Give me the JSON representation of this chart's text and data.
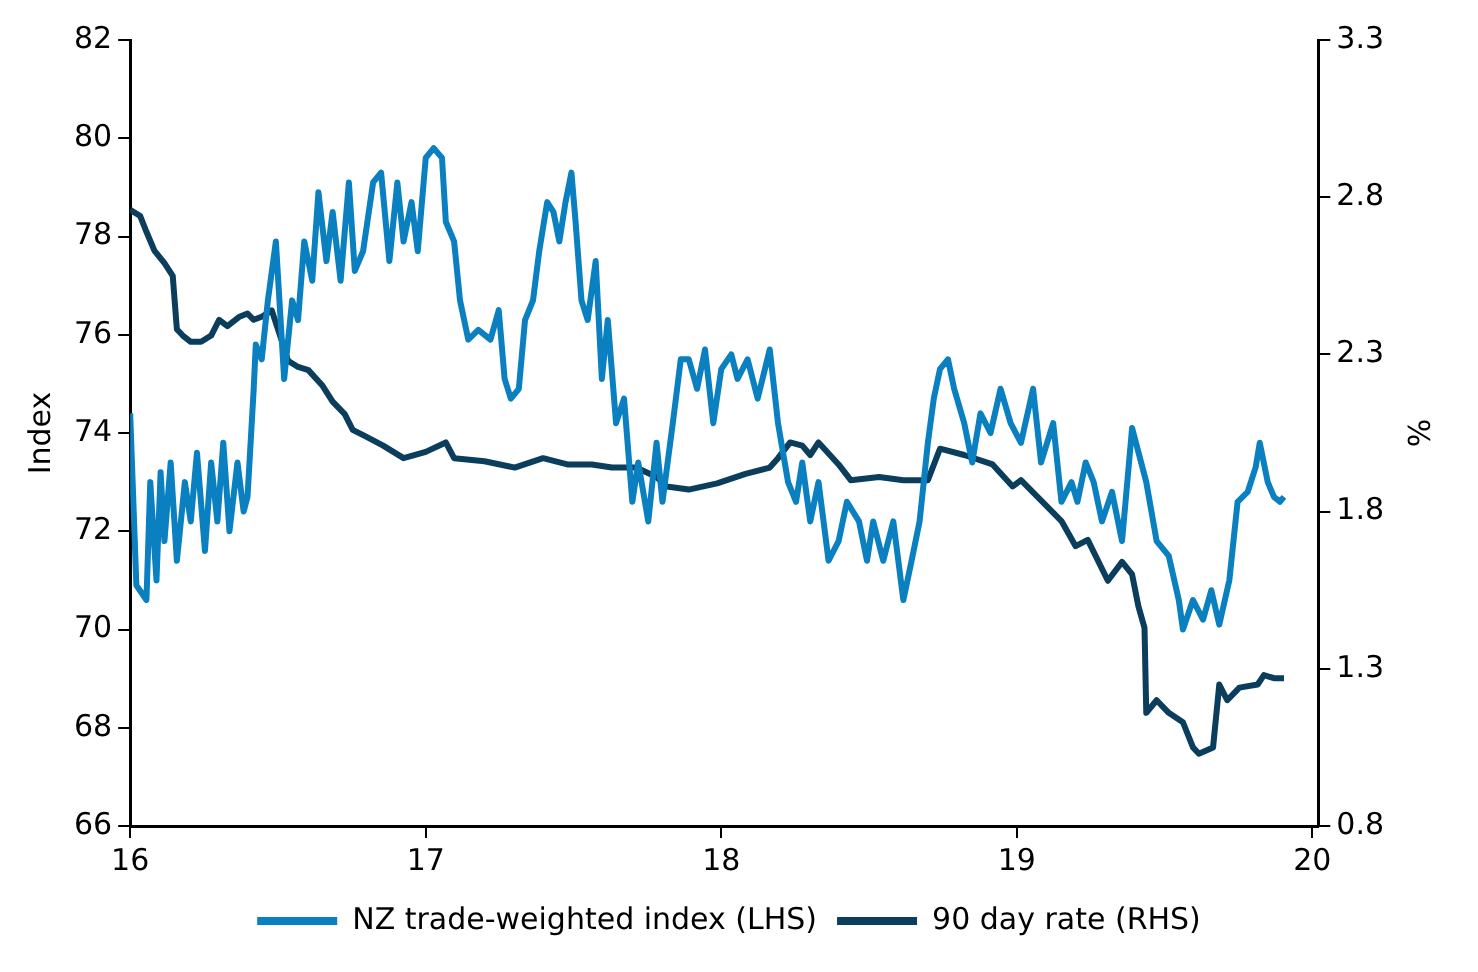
{
  "chart_data": {
    "type": "line",
    "ylabel": "Index",
    "y2label": "%",
    "xlim": [
      16,
      20.02
    ],
    "xticks": [
      16,
      17,
      18,
      19,
      20
    ],
    "ylim": [
      66,
      82
    ],
    "yticks": [
      66,
      68,
      70,
      72,
      74,
      76,
      78,
      80,
      82
    ],
    "y2lim": [
      0.8,
      3.3
    ],
    "y2ticks": [
      0.8,
      1.3,
      1.8,
      2.3,
      2.8,
      3.3
    ],
    "grid": false,
    "legend": "bottom",
    "marker": "none",
    "line_style": "solid",
    "series": [
      {
        "name": "NZ trade-weighted index (LHS)",
        "color": "#0a80c0",
        "x": [
          16.0,
          16.021,
          16.055,
          16.068,
          16.089,
          16.103,
          16.116,
          16.137,
          16.158,
          16.185,
          16.205,
          16.226,
          16.253,
          16.274,
          16.295,
          16.315,
          16.336,
          16.363,
          16.384,
          16.397,
          16.418,
          16.425,
          16.445,
          16.466,
          16.493,
          16.521,
          16.548,
          16.568,
          16.589,
          16.616,
          16.637,
          16.664,
          16.685,
          16.712,
          16.74,
          16.76,
          16.788,
          16.822,
          16.849,
          16.877,
          16.904,
          16.925,
          16.952,
          16.973,
          17.0,
          17.027,
          17.055,
          17.068,
          17.096,
          17.116,
          17.144,
          17.178,
          17.219,
          17.247,
          17.267,
          17.288,
          17.315,
          17.336,
          17.363,
          17.384,
          17.411,
          17.432,
          17.452,
          17.473,
          17.493,
          17.507,
          17.527,
          17.548,
          17.575,
          17.596,
          17.616,
          17.644,
          17.671,
          17.699,
          17.719,
          17.753,
          17.781,
          17.801,
          17.836,
          17.863,
          17.89,
          17.918,
          17.945,
          17.973,
          18.0,
          18.034,
          18.055,
          18.089,
          18.123,
          18.164,
          18.192,
          18.226,
          18.253,
          18.274,
          18.301,
          18.329,
          18.363,
          18.397,
          18.425,
          18.466,
          18.493,
          18.514,
          18.548,
          18.582,
          18.616,
          18.644,
          18.671,
          18.699,
          18.719,
          18.74,
          18.767,
          18.788,
          18.822,
          18.849,
          18.877,
          18.911,
          18.945,
          18.979,
          19.014,
          19.055,
          19.082,
          19.123,
          19.151,
          19.185,
          19.205,
          19.233,
          19.26,
          19.288,
          19.322,
          19.356,
          19.39,
          19.438,
          19.473,
          19.514,
          19.548,
          19.562,
          19.596,
          19.63,
          19.658,
          19.685,
          19.719,
          19.747,
          19.781,
          19.808,
          19.822,
          19.849,
          19.87,
          19.89,
          19.904
        ],
        "values": [
          74.4,
          70.9,
          70.6,
          73.0,
          71.0,
          73.2,
          71.8,
          73.4,
          71.4,
          73.0,
          72.2,
          73.6,
          71.6,
          73.4,
          72.2,
          73.8,
          72.0,
          73.4,
          72.4,
          72.7,
          74.9,
          75.8,
          75.5,
          76.7,
          77.9,
          75.1,
          76.7,
          76.3,
          77.9,
          77.1,
          78.9,
          77.5,
          78.5,
          77.1,
          79.1,
          77.3,
          77.7,
          79.1,
          79.3,
          77.5,
          79.1,
          77.9,
          78.7,
          77.7,
          79.6,
          79.8,
          79.6,
          78.3,
          77.9,
          76.7,
          75.9,
          76.1,
          75.9,
          76.5,
          75.1,
          74.7,
          74.9,
          76.3,
          76.7,
          77.7,
          78.7,
          78.5,
          77.9,
          78.7,
          79.3,
          78.3,
          76.7,
          76.3,
          77.5,
          75.1,
          76.3,
          74.2,
          74.7,
          72.6,
          73.4,
          72.2,
          73.8,
          72.6,
          74.2,
          75.5,
          75.5,
          74.9,
          75.7,
          74.2,
          75.3,
          75.6,
          75.1,
          75.5,
          74.7,
          75.7,
          74.2,
          73.0,
          72.6,
          73.4,
          72.2,
          73.0,
          71.4,
          71.8,
          72.6,
          72.2,
          71.4,
          72.2,
          71.4,
          72.2,
          70.6,
          71.4,
          72.2,
          73.8,
          74.7,
          75.3,
          75.5,
          74.9,
          74.2,
          73.4,
          74.4,
          74.0,
          74.9,
          74.2,
          73.8,
          74.9,
          73.4,
          74.2,
          72.6,
          73.0,
          72.6,
          73.4,
          73.0,
          72.2,
          72.8,
          71.8,
          74.1,
          73.0,
          71.8,
          71.5,
          70.6,
          70.0,
          70.6,
          70.2,
          70.8,
          70.1,
          71.0,
          72.6,
          72.8,
          73.3,
          73.8,
          73.0,
          72.7,
          72.6,
          72.7
        ]
      },
      {
        "name": "90 day rate (RHS)",
        "color": "#0b3d5c",
        "axis": "y2",
        "x": [
          16.0,
          16.034,
          16.055,
          16.082,
          16.116,
          16.144,
          16.158,
          16.178,
          16.205,
          16.24,
          16.274,
          16.301,
          16.329,
          16.37,
          16.397,
          16.418,
          16.445,
          16.479,
          16.514,
          16.534,
          16.568,
          16.603,
          16.651,
          16.685,
          16.726,
          16.753,
          16.795,
          16.856,
          16.925,
          17.0,
          17.068,
          17.096,
          17.199,
          17.301,
          17.397,
          17.479,
          17.562,
          17.63,
          17.712,
          17.781,
          17.815,
          17.89,
          17.986,
          18.082,
          18.164,
          18.192,
          18.233,
          18.274,
          18.301,
          18.329,
          18.397,
          18.438,
          18.534,
          18.616,
          18.699,
          18.74,
          18.822,
          18.918,
          18.986,
          19.014,
          19.151,
          19.199,
          19.24,
          19.308,
          19.356,
          19.39,
          19.411,
          19.432,
          19.438,
          19.473,
          19.514,
          19.562,
          19.596,
          19.616,
          19.664,
          19.685,
          19.712,
          19.753,
          19.815,
          19.836,
          19.87,
          19.904
        ],
        "values": [
          2.76,
          2.74,
          2.69,
          2.63,
          2.59,
          2.55,
          2.38,
          2.36,
          2.34,
          2.34,
          2.36,
          2.41,
          2.39,
          2.42,
          2.43,
          2.41,
          2.42,
          2.44,
          2.34,
          2.28,
          2.26,
          2.25,
          2.2,
          2.15,
          2.11,
          2.06,
          2.04,
          2.01,
          1.97,
          1.99,
          2.02,
          1.97,
          1.96,
          1.94,
          1.97,
          1.95,
          1.95,
          1.94,
          1.94,
          1.91,
          1.88,
          1.87,
          1.89,
          1.92,
          1.94,
          1.97,
          2.02,
          2.01,
          1.98,
          2.02,
          1.95,
          1.9,
          1.91,
          1.9,
          1.9,
          2.0,
          1.98,
          1.95,
          1.88,
          1.9,
          1.77,
          1.69,
          1.71,
          1.58,
          1.64,
          1.6,
          1.5,
          1.43,
          1.16,
          1.2,
          1.16,
          1.13,
          1.05,
          1.03,
          1.05,
          1.25,
          1.2,
          1.24,
          1.25,
          1.28,
          1.27,
          1.27
        ]
      }
    ]
  }
}
